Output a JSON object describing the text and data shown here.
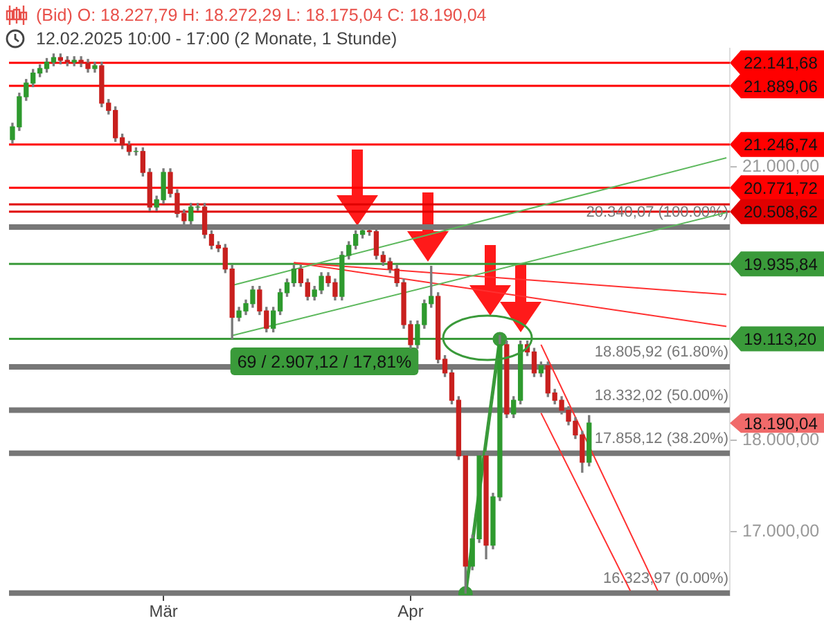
{
  "chart_data": {
    "type": "candlestick",
    "title": "(Bid)   O: 18.227,79   H: 18.272,29   L: 18.175,04   C: 18.190,04",
    "subtitle": "12.02.2025 10:00 - 17:00   (2 Monate, 1 Stunde)",
    "categories": [
      null,
      null,
      null,
      null,
      null,
      null,
      null,
      null,
      null,
      null,
      null,
      null,
      null,
      null,
      null,
      null,
      null,
      null,
      null,
      null,
      null,
      null,
      "Mär",
      null,
      null,
      null,
      null,
      null,
      null,
      null,
      null,
      null,
      null,
      null,
      null,
      null,
      null,
      null,
      null,
      null,
      null,
      null,
      null,
      null,
      null,
      null,
      null,
      null,
      null,
      null,
      null,
      null,
      null,
      null,
      null,
      null,
      null,
      null,
      "Apr",
      null,
      null,
      null,
      null,
      null,
      null,
      null,
      null,
      null,
      null,
      null,
      null,
      null,
      null,
      null,
      null,
      null,
      null,
      null,
      null,
      null,
      null,
      null,
      null,
      null,
      null,
      null,
      null,
      null,
      null,
      null,
      null,
      null,
      null,
      null,
      null,
      null,
      null,
      null,
      null,
      null,
      null,
      null,
      null,
      null,
      null
    ],
    "ohlc": [
      [
        21300,
        21480,
        21260,
        21440
      ],
      [
        21440,
        21810,
        21400,
        21770
      ],
      [
        21770,
        21960,
        21730,
        21920
      ],
      [
        21920,
        22070,
        21880,
        22030
      ],
      [
        22030,
        22120,
        21990,
        22080
      ],
      [
        22080,
        22190,
        22040,
        22150
      ],
      [
        22150,
        22240,
        22110,
        22200
      ],
      [
        22200,
        22240,
        22130,
        22170
      ],
      [
        22170,
        22210,
        22110,
        22150
      ],
      [
        22150,
        22210,
        22110,
        22170
      ],
      [
        22170,
        22210,
        22100,
        22140
      ],
      [
        22140,
        22180,
        22040,
        22080
      ],
      [
        22080,
        22150,
        22040,
        22110
      ],
      [
        22110,
        22150,
        21660,
        21700
      ],
      [
        21700,
        21740,
        21580,
        21620
      ],
      [
        21620,
        21660,
        21280,
        21320
      ],
      [
        21320,
        21360,
        21200,
        21240
      ],
      [
        21240,
        21280,
        21130,
        21170
      ],
      [
        21170,
        21210,
        21130,
        21170
      ],
      [
        21170,
        21210,
        20900,
        20940
      ],
      [
        20940,
        20980,
        20520,
        20560
      ],
      [
        20560,
        20680,
        20520,
        20640
      ],
      [
        20640,
        20980,
        20600,
        20940
      ],
      [
        20940,
        20980,
        20670,
        20710
      ],
      [
        20710,
        20750,
        20450,
        20490
      ],
      [
        20490,
        20530,
        20370,
        20410
      ],
      [
        20410,
        20600,
        20370,
        20560
      ],
      [
        20560,
        20600,
        20520,
        20560
      ],
      [
        20560,
        20600,
        20220,
        20260
      ],
      [
        20260,
        20300,
        20100,
        20140
      ],
      [
        20140,
        20180,
        20070,
        20110
      ],
      [
        20110,
        20150,
        19840,
        19880
      ],
      [
        19880,
        19920,
        19113.2,
        19350
      ],
      [
        19350,
        19460,
        19310,
        19420
      ],
      [
        19420,
        19540,
        19380,
        19500
      ],
      [
        19500,
        19690,
        19460,
        19650
      ],
      [
        19650,
        19690,
        19380,
        19420
      ],
      [
        19420,
        19460,
        19190,
        19230
      ],
      [
        19230,
        19460,
        19190,
        19420
      ],
      [
        19420,
        19660,
        19380,
        19620
      ],
      [
        19620,
        19770,
        19580,
        19730
      ],
      [
        19730,
        19920,
        19690,
        19880
      ],
      [
        19880,
        19920,
        19690,
        19730
      ],
      [
        19730,
        19770,
        19540,
        19580
      ],
      [
        19580,
        19690,
        19540,
        19650
      ],
      [
        19650,
        19840,
        19610,
        19800
      ],
      [
        19800,
        19840,
        19690,
        19730
      ],
      [
        19730,
        19770,
        19540,
        19580
      ],
      [
        19580,
        20070,
        19540,
        20030
      ],
      [
        20030,
        20180,
        19990,
        20140
      ],
      [
        20140,
        20300,
        20100,
        20260
      ],
      [
        20260,
        20340.07,
        20220,
        20300
      ],
      [
        20300,
        20340,
        20250,
        20290
      ],
      [
        20290,
        20330,
        19990,
        20030
      ],
      [
        20030,
        20070,
        19920,
        19960
      ],
      [
        19960,
        20000,
        19840,
        19880
      ],
      [
        19880,
        19920,
        19690,
        19730
      ],
      [
        19730,
        19770,
        19230,
        19270
      ],
      [
        19270,
        19310,
        19010,
        19050
      ],
      [
        19050,
        19310,
        19010,
        19270
      ],
      [
        19270,
        19540,
        19230,
        19500
      ],
      [
        19500,
        19910,
        19460,
        19580
      ],
      [
        19580,
        19620,
        18850,
        18890
      ],
      [
        18890,
        18930,
        18700,
        18740
      ],
      [
        18740,
        18780,
        18400,
        18440
      ],
      [
        18440,
        18480,
        17790,
        17830
      ],
      [
        17830,
        17870,
        16323.97,
        16620
      ],
      [
        16620,
        16960,
        16580,
        16920
      ],
      [
        16920,
        17870,
        16880,
        17830
      ],
      [
        17830,
        17870,
        16700,
        16850
      ],
      [
        16850,
        17420,
        16810,
        17380
      ],
      [
        17380,
        19150,
        17340,
        19050
      ],
      [
        19050,
        19090,
        18250,
        18290
      ],
      [
        18290,
        18480,
        18250,
        18440
      ],
      [
        18440,
        19090,
        18400,
        19050
      ],
      [
        19050,
        19090,
        18930,
        18970
      ],
      [
        18970,
        19010,
        18700,
        18740
      ],
      [
        18740,
        18860,
        18700,
        18820
      ],
      [
        18820,
        18860,
        18480,
        18520
      ],
      [
        18520,
        18560,
        18400,
        18440
      ],
      [
        18440,
        18480,
        18290,
        18330
      ],
      [
        18330,
        18370,
        18170,
        18210
      ],
      [
        18210,
        18250,
        18020,
        18060
      ],
      [
        18060,
        18100,
        17650,
        17760
      ],
      [
        17760,
        18272.29,
        17720,
        18190.04
      ],
      null,
      null,
      null,
      null,
      null,
      null,
      null,
      null,
      null,
      null,
      null,
      null,
      null,
      null,
      null,
      null,
      null,
      null,
      null,
      null
    ],
    "series": [
      {
        "type": "line",
        "color": "#5cb85c",
        "values": [
          null,
          null,
          null,
          null,
          null,
          null,
          null,
          null,
          null,
          null,
          null,
          null,
          null,
          null,
          null,
          null,
          null,
          null,
          null,
          null,
          null,
          null,
          null,
          null,
          null,
          null,
          null,
          null,
          null,
          null,
          null,
          null,
          19700,
          null,
          null,
          null,
          null,
          null,
          null,
          null,
          null,
          null,
          null,
          null,
          null,
          null,
          null,
          null,
          null,
          null,
          null,
          null,
          null,
          null,
          null,
          null,
          null,
          null,
          null,
          null,
          null,
          null,
          null,
          null,
          null,
          null,
          null,
          null,
          null,
          null,
          null,
          null,
          null,
          null,
          null,
          null,
          null,
          null,
          null,
          null,
          null,
          null,
          null,
          null,
          null,
          null,
          null,
          null,
          null,
          null,
          null,
          null,
          null,
          null,
          null,
          null,
          null,
          null,
          null,
          null,
          null,
          null,
          null,
          null,
          21100
        ]
      },
      {
        "type": "line",
        "color": "#5cb85c",
        "values": [
          null,
          null,
          null,
          null,
          null,
          null,
          null,
          null,
          null,
          null,
          null,
          null,
          null,
          null,
          null,
          null,
          null,
          null,
          null,
          null,
          null,
          null,
          null,
          null,
          null,
          null,
          null,
          null,
          null,
          null,
          null,
          null,
          19150,
          null,
          null,
          null,
          null,
          null,
          null,
          null,
          null,
          null,
          null,
          null,
          null,
          null,
          null,
          null,
          null,
          null,
          null,
          null,
          null,
          null,
          null,
          null,
          null,
          null,
          null,
          null,
          null,
          null,
          null,
          null,
          null,
          null,
          null,
          null,
          null,
          null,
          null,
          null,
          null,
          null,
          null,
          null,
          null,
          null,
          null,
          null,
          null,
          null,
          null,
          null,
          null,
          null,
          null,
          null,
          null,
          null,
          null,
          null,
          null,
          null,
          null,
          null,
          null,
          null,
          null,
          null,
          null,
          null,
          null,
          null,
          20500
        ]
      },
      {
        "type": "line",
        "color": "#ff3030",
        "values": [
          null,
          null,
          null,
          null,
          null,
          null,
          null,
          null,
          null,
          null,
          null,
          null,
          null,
          null,
          null,
          null,
          null,
          null,
          null,
          null,
          null,
          null,
          null,
          null,
          null,
          null,
          null,
          null,
          null,
          null,
          null,
          null,
          null,
          null,
          null,
          null,
          null,
          null,
          null,
          null,
          null,
          19950,
          null,
          null,
          null,
          null,
          null,
          null,
          null,
          null,
          null,
          null,
          null,
          null,
          null,
          null,
          null,
          null,
          null,
          null,
          null,
          null,
          null,
          null,
          null,
          null,
          null,
          null,
          null,
          null,
          null,
          null,
          null,
          null,
          null,
          null,
          null,
          null,
          null,
          null,
          null,
          null,
          null,
          null,
          null,
          null,
          null,
          null,
          null,
          null,
          null,
          null,
          null,
          null,
          null,
          null,
          null,
          null,
          null,
          null,
          null,
          null,
          null,
          null,
          19600
        ]
      },
      {
        "type": "line",
        "color": "#ff3030",
        "values": [
          null,
          null,
          null,
          null,
          null,
          null,
          null,
          null,
          null,
          null,
          null,
          null,
          null,
          null,
          null,
          null,
          null,
          null,
          null,
          null,
          null,
          null,
          null,
          null,
          null,
          null,
          null,
          null,
          null,
          null,
          null,
          null,
          null,
          null,
          null,
          null,
          null,
          null,
          null,
          null,
          null,
          19950,
          null,
          null,
          null,
          null,
          null,
          null,
          null,
          null,
          null,
          null,
          null,
          null,
          null,
          null,
          null,
          null,
          null,
          null,
          null,
          null,
          null,
          null,
          null,
          null,
          null,
          null,
          null,
          null,
          null,
          null,
          null,
          null,
          null,
          null,
          null,
          null,
          null,
          null,
          null,
          null,
          null,
          null,
          null,
          null,
          null,
          null,
          null,
          null,
          null,
          null,
          null,
          null,
          null,
          null,
          null,
          null,
          null,
          null,
          null,
          null,
          null,
          null,
          19250
        ]
      },
      {
        "type": "line",
        "color": "#ff3030",
        "values": [
          null,
          null,
          null,
          null,
          null,
          null,
          null,
          null,
          null,
          null,
          null,
          null,
          null,
          null,
          null,
          null,
          null,
          null,
          null,
          null,
          null,
          null,
          null,
          null,
          null,
          null,
          null,
          null,
          null,
          null,
          null,
          null,
          null,
          null,
          null,
          null,
          null,
          null,
          null,
          null,
          null,
          null,
          null,
          null,
          null,
          null,
          null,
          null,
          null,
          null,
          null,
          null,
          null,
          null,
          null,
          null,
          null,
          null,
          null,
          null,
          null,
          null,
          null,
          null,
          null,
          null,
          null,
          null,
          null,
          null,
          null,
          null,
          null,
          null,
          null,
          null,
          null,
          19050,
          null,
          null,
          null,
          null,
          null,
          null,
          null,
          null,
          null,
          null,
          null,
          null,
          null,
          null,
          null,
          null,
          16350,
          null,
          null,
          null,
          null,
          null,
          null,
          null,
          null,
          null,
          null
        ]
      },
      {
        "type": "line",
        "color": "#ff3030",
        "values": [
          null,
          null,
          null,
          null,
          null,
          null,
          null,
          null,
          null,
          null,
          null,
          null,
          null,
          null,
          null,
          null,
          null,
          null,
          null,
          null,
          null,
          null,
          null,
          null,
          null,
          null,
          null,
          null,
          null,
          null,
          null,
          null,
          null,
          null,
          null,
          null,
          null,
          null,
          null,
          null,
          null,
          null,
          null,
          null,
          null,
          null,
          null,
          null,
          null,
          null,
          null,
          null,
          null,
          null,
          null,
          null,
          null,
          null,
          null,
          null,
          null,
          null,
          null,
          null,
          null,
          null,
          null,
          null,
          null,
          null,
          null,
          null,
          null,
          null,
          null,
          null,
          null,
          18300,
          null,
          null,
          null,
          null,
          null,
          null,
          null,
          null,
          null,
          null,
          null,
          null,
          16350,
          null,
          null,
          null,
          null,
          null,
          null,
          null,
          null,
          null,
          null,
          null,
          null,
          null,
          null
        ]
      },
      {
        "type": "line",
        "color": "#3a9a3a",
        "marker": "circle",
        "values": [
          null,
          null,
          null,
          null,
          null,
          null,
          null,
          null,
          null,
          null,
          null,
          null,
          null,
          null,
          null,
          null,
          null,
          null,
          null,
          null,
          null,
          null,
          null,
          null,
          null,
          null,
          null,
          null,
          null,
          null,
          null,
          null,
          null,
          null,
          null,
          null,
          null,
          null,
          null,
          null,
          null,
          null,
          null,
          null,
          null,
          null,
          null,
          null,
          null,
          null,
          null,
          null,
          null,
          null,
          null,
          null,
          null,
          null,
          null,
          null,
          null,
          null,
          null,
          null,
          null,
          null,
          16320,
          null,
          null,
          null,
          null,
          19110,
          null,
          null,
          null,
          null,
          null,
          null,
          null,
          null,
          null,
          null,
          null,
          null,
          null,
          null,
          null,
          null,
          null,
          null,
          null,
          null,
          null,
          null,
          null,
          null,
          null,
          null,
          null,
          null,
          null,
          null,
          null,
          null,
          null
        ]
      }
    ],
    "ylim": [
      16300,
      22300
    ],
    "yticks": [
      {
        "value": 17000,
        "label": "17.000,00"
      },
      {
        "value": 18000,
        "label": "18.000,00"
      },
      {
        "value": 21000,
        "label": "21.000,00"
      }
    ],
    "ref_lines": [
      {
        "axis": "y",
        "value": 22141.68,
        "label": "22.141,68",
        "color": "#ff0000"
      },
      {
        "axis": "y",
        "value": 21889.06,
        "label": "21.889,06",
        "color": "#ff0000"
      },
      {
        "axis": "y",
        "value": 21246.74,
        "label": "21.246,74",
        "color": "#ff0000"
      },
      {
        "axis": "y",
        "value": 20771.72,
        "label": "20.771,72",
        "color": "#ff0000"
      },
      {
        "axis": "y",
        "value": 20590,
        "label": null,
        "color": "#e00000"
      },
      {
        "axis": "y",
        "value": 20508.62,
        "label": "20.508,62",
        "color": "#e00000"
      },
      {
        "axis": "y",
        "value": 19935.84,
        "label": "19.935,84",
        "color": "#3a9a3a"
      },
      {
        "axis": "y",
        "value": 19113.2,
        "label": "19.113,20",
        "color": "#3a9a3a"
      },
      {
        "axis": "y",
        "value": 20340.07,
        "label": "20.340,07 (100.00%)",
        "color": "#777777"
      },
      {
        "axis": "y",
        "value": 18805.92,
        "label": "18.805,92 (61.80%)",
        "color": "#777777"
      },
      {
        "axis": "y",
        "value": 18332.02,
        "label": "18.332,02 (50.00%)",
        "color": "#777777"
      },
      {
        "axis": "y",
        "value": 17858.12,
        "label": "17.858,12 (38.20%)",
        "color": "#777777"
      },
      {
        "axis": "y",
        "value": 16323.97,
        "label": "16.323,97 (0.00%)",
        "color": "#777777"
      }
    ],
    "annotations": [
      "18.190,04",
      "69 / 2.907,12 / 17,81%"
    ]
  }
}
